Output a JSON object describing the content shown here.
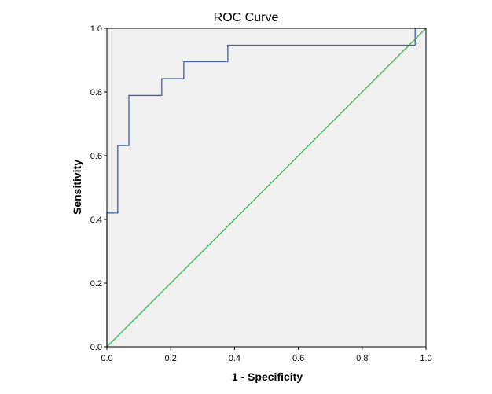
{
  "chart_data": {
    "type": "line",
    "title": "ROC Curve",
    "xlabel": "1 - Specificity",
    "ylabel": "Sensitivity",
    "xlim": [
      0.0,
      1.0
    ],
    "ylim": [
      0.0,
      1.0
    ],
    "x_ticks": [
      "0.0",
      "0.2",
      "0.4",
      "0.6",
      "0.8",
      "1.0"
    ],
    "y_ticks": [
      "0.0",
      "0.2",
      "0.4",
      "0.6",
      "0.8",
      "1.0"
    ],
    "grid": false,
    "plot_background": "#f0f0f0",
    "series": [
      {
        "color": "#3f5fa8",
        "step": true,
        "points": [
          [
            0.0,
            0.0
          ],
          [
            0.0,
            0.42
          ],
          [
            0.034,
            0.42
          ],
          [
            0.034,
            0.632
          ],
          [
            0.069,
            0.632
          ],
          [
            0.069,
            0.789
          ],
          [
            0.172,
            0.789
          ],
          [
            0.172,
            0.842
          ],
          [
            0.241,
            0.842
          ],
          [
            0.241,
            0.895
          ],
          [
            0.379,
            0.895
          ],
          [
            0.379,
            0.947
          ],
          [
            0.966,
            0.947
          ],
          [
            0.966,
            1.0
          ],
          [
            1.0,
            1.0
          ]
        ]
      },
      {
        "color": "#3cb44b",
        "step": false,
        "points": [
          [
            0.0,
            0.0
          ],
          [
            1.0,
            1.0
          ]
        ]
      }
    ]
  }
}
